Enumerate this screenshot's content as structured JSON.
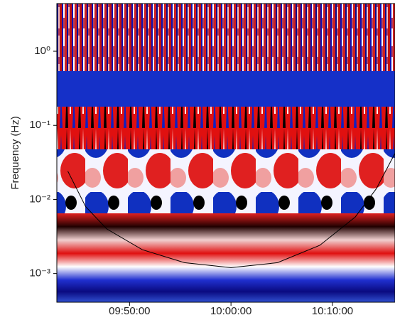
{
  "chart_data": {
    "type": "wavelet",
    "y_label": "Frequency (Hz)",
    "yscale": "log",
    "xlim": [
      "09:42:50",
      "10:16:10"
    ],
    "xticks": [
      "09:50:00",
      "10:00:00",
      "10:10:00"
    ],
    "ylim": [
      0.00041,
      4.4
    ],
    "yticks": [
      {
        "value": 1,
        "label": "10⁰"
      },
      {
        "value": 0.1,
        "label": "10⁻¹"
      },
      {
        "value": 0.01,
        "label": "10⁻²"
      },
      {
        "value": 0.001,
        "label": "10⁻³"
      }
    ],
    "cone": {
      "color": "#000000",
      "x": [
        "09:43:55",
        "09:45:40",
        "09:47:45",
        "09:51:15",
        "09:55:25",
        "10:00:00",
        "10:04:35",
        "10:08:45",
        "10:12:15",
        "10:14:20",
        "10:16:10"
      ],
      "values": [
        0.024,
        0.008,
        0.004,
        0.0021,
        0.0014,
        0.0012,
        0.0014,
        0.0024,
        0.0058,
        0.014,
        0.042
      ]
    }
  }
}
